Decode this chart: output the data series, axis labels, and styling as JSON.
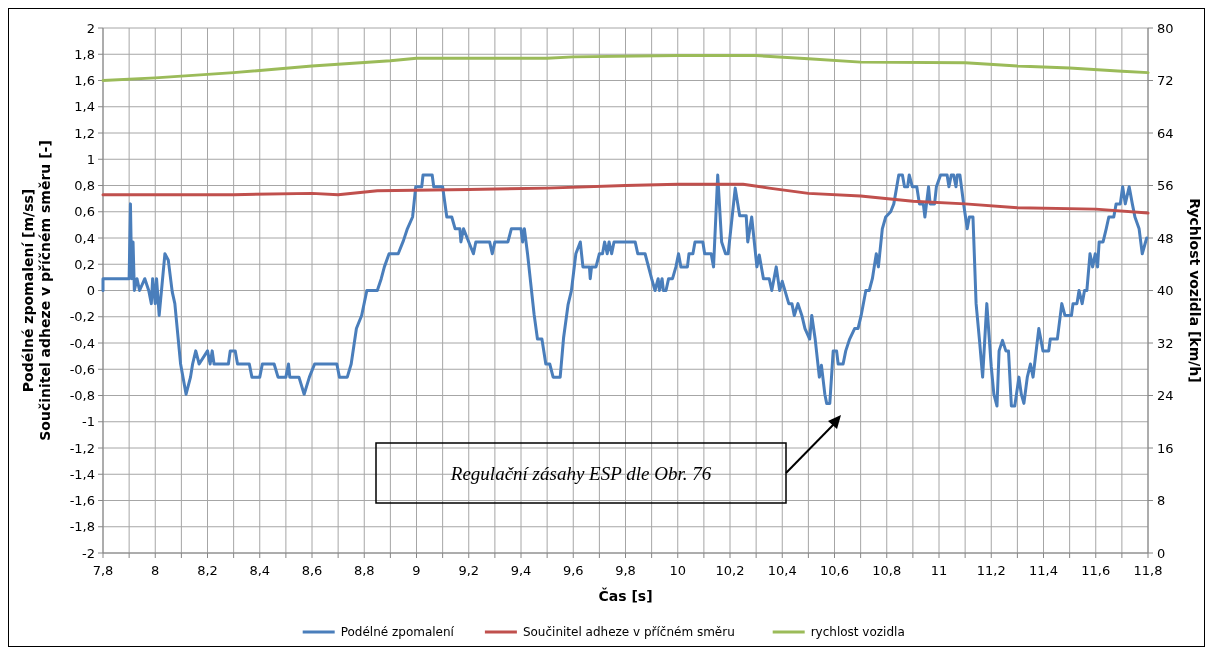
{
  "chart_data": {
    "type": "line",
    "xlabel": "Čas [s]",
    "ylabel": "Podélné zpomalení [m/ss]\nSoučinitel adheze v příčném směru [-]",
    "y2label": "Rychlost vozidla [km/h]",
    "xlim": [
      7.8,
      11.8
    ],
    "xticks": [
      {
        "value": 7.8,
        "label": "7,8"
      },
      {
        "value": 7.9,
        "label": null
      },
      {
        "value": 8,
        "label": "8"
      },
      {
        "value": 8.1,
        "label": null
      },
      {
        "value": 8.2,
        "label": "8,2"
      },
      {
        "value": 8.3,
        "label": null
      },
      {
        "value": 8.4,
        "label": "8,4"
      },
      {
        "value": 8.5,
        "label": null
      },
      {
        "value": 8.6,
        "label": "8,6"
      },
      {
        "value": 8.7,
        "label": null
      },
      {
        "value": 8.8,
        "label": "8,8"
      },
      {
        "value": 8.9,
        "label": null
      },
      {
        "value": 9,
        "label": "9"
      },
      {
        "value": 9.1,
        "label": null
      },
      {
        "value": 9.2,
        "label": "9,2"
      },
      {
        "value": 9.3,
        "label": null
      },
      {
        "value": 9.4,
        "label": "9,4"
      },
      {
        "value": 9.5,
        "label": null
      },
      {
        "value": 9.6,
        "label": "9,6"
      },
      {
        "value": 9.7,
        "label": null
      },
      {
        "value": 9.8,
        "label": "9,8"
      },
      {
        "value": 9.9,
        "label": null
      },
      {
        "value": 10,
        "label": "10"
      },
      {
        "value": 10.1,
        "label": null
      },
      {
        "value": 10.2,
        "label": "10,2"
      },
      {
        "value": 10.3,
        "label": null
      },
      {
        "value": 10.4,
        "label": "10,4"
      },
      {
        "value": 10.5,
        "label": null
      },
      {
        "value": 10.6,
        "label": "10,6"
      },
      {
        "value": 10.7,
        "label": null
      },
      {
        "value": 10.8,
        "label": "10,8"
      },
      {
        "value": 10.9,
        "label": null
      },
      {
        "value": 11,
        "label": "11"
      },
      {
        "value": 11.1,
        "label": null
      },
      {
        "value": 11.2,
        "label": "11,2"
      },
      {
        "value": 11.3,
        "label": null
      },
      {
        "value": 11.4,
        "label": "11,4"
      },
      {
        "value": 11.5,
        "label": null
      },
      {
        "value": 11.6,
        "label": "11,6"
      },
      {
        "value": 11.7,
        "label": null
      },
      {
        "value": 11.8,
        "label": "11,8"
      }
    ],
    "ylim": [
      -2,
      2
    ],
    "yticks": [
      {
        "value": -2,
        "label": "-2"
      },
      {
        "value": -1.8,
        "label": "-1,8"
      },
      {
        "value": -1.6,
        "label": "-1,6"
      },
      {
        "value": -1.4,
        "label": "-1,4"
      },
      {
        "value": -1.2,
        "label": "-1,2"
      },
      {
        "value": -1,
        "label": "-1"
      },
      {
        "value": -0.8,
        "label": "-0,8"
      },
      {
        "value": -0.6,
        "label": "-0,6"
      },
      {
        "value": -0.4,
        "label": "-0,4"
      },
      {
        "value": -0.2,
        "label": "-0,2"
      },
      {
        "value": 0,
        "label": "0"
      },
      {
        "value": 0.2,
        "label": "0,2"
      },
      {
        "value": 0.4,
        "label": "0,4"
      },
      {
        "value": 0.6,
        "label": "0,6"
      },
      {
        "value": 0.8,
        "label": "0,8"
      },
      {
        "value": 1,
        "label": "1"
      },
      {
        "value": 1.2,
        "label": "1,2"
      },
      {
        "value": 1.4,
        "label": "1,4"
      },
      {
        "value": 1.6,
        "label": "1,6"
      },
      {
        "value": 1.8,
        "label": "1,8"
      },
      {
        "value": 2,
        "label": "2"
      }
    ],
    "y2lim": [
      0,
      80
    ],
    "y2ticks": [
      0,
      8,
      16,
      24,
      32,
      40,
      48,
      56,
      64,
      72,
      80
    ],
    "grid": true,
    "legend": "bottom",
    "annotations": [
      "Regulační zásahy ESP dle Obr. 76"
    ],
    "series": [
      {
        "name": "Podélné zpomalení",
        "color": "#4a7ebb",
        "x": [
          7.8,
          7.8,
          7.9,
          7.905,
          7.91,
          7.915,
          7.92,
          7.93,
          7.94,
          7.96,
          7.975,
          7.985,
          7.99,
          8.0,
          8.005,
          8.015,
          8.037,
          8.05,
          8.065,
          8.075,
          8.097,
          8.118,
          8.135,
          8.143,
          8.155,
          8.168,
          8.2,
          8.21,
          8.218,
          8.225,
          8.28,
          8.287,
          8.306,
          8.315,
          8.36,
          8.37,
          8.4,
          8.41,
          8.455,
          8.47,
          8.5,
          8.51,
          8.515,
          8.55,
          8.57,
          8.59,
          8.61,
          8.695,
          8.705,
          8.735,
          8.75,
          8.77,
          8.79,
          8.81,
          8.85,
          8.865,
          8.877,
          8.895,
          8.93,
          8.95,
          8.965,
          8.985,
          8.997,
          9.02,
          9.025,
          9.06,
          9.066,
          9.1,
          9.116,
          9.135,
          9.148,
          9.166,
          9.17,
          9.18,
          9.2,
          9.218,
          9.227,
          9.28,
          9.29,
          9.3,
          9.35,
          9.363,
          9.4,
          9.406,
          9.413,
          9.425,
          9.45,
          9.463,
          9.48,
          9.495,
          9.51,
          9.523,
          9.55,
          9.563,
          9.58,
          9.593,
          9.61,
          9.627,
          9.637,
          9.662,
          9.665,
          9.67,
          9.687,
          9.7,
          9.712,
          9.72,
          9.73,
          9.737,
          9.747,
          9.756,
          9.837,
          9.847,
          9.875,
          9.9,
          9.913,
          9.925,
          9.93,
          9.94,
          9.945,
          9.955,
          9.965,
          9.98,
          9.993,
          10.003,
          10.012,
          10.037,
          10.043,
          10.058,
          10.066,
          10.096,
          10.103,
          10.128,
          10.137,
          10.153,
          10.168,
          10.183,
          10.193,
          10.22,
          10.237,
          10.262,
          10.268,
          10.283,
          10.303,
          10.312,
          10.328,
          10.35,
          10.36,
          10.377,
          10.39,
          10.4,
          10.425,
          10.437,
          10.446,
          10.46,
          10.475,
          10.487,
          10.505,
          10.513,
          10.526,
          10.542,
          10.55,
          10.563,
          10.57,
          10.582,
          10.595,
          10.608,
          10.614,
          10.633,
          10.643,
          10.658,
          10.677,
          10.69,
          10.702,
          10.72,
          10.733,
          10.745,
          10.752,
          10.76,
          10.768,
          10.783,
          10.796,
          10.815,
          10.827,
          10.846,
          10.86,
          10.868,
          10.88,
          10.886,
          10.898,
          10.915,
          10.925,
          10.94,
          10.946,
          10.96,
          10.966,
          10.983,
          10.99,
          11.006,
          11.031,
          11.038,
          11.047,
          11.056,
          11.065,
          11.07,
          11.08,
          11.095,
          11.108,
          11.116,
          11.13,
          11.142,
          11.155,
          11.167,
          11.183,
          11.2,
          11.21,
          11.222,
          11.23,
          11.243,
          11.256,
          11.266,
          11.277,
          11.29,
          11.306,
          11.315,
          11.325,
          11.338,
          11.35,
          11.36,
          11.382,
          11.398,
          11.42,
          11.426,
          11.453,
          11.47,
          11.482,
          11.507,
          11.513,
          11.528,
          11.536,
          11.548,
          11.557,
          11.566,
          11.578,
          11.588,
          11.598,
          11.607,
          11.613,
          11.628,
          11.64,
          11.65,
          11.669,
          11.678,
          11.694,
          11.703,
          11.713,
          11.728,
          11.74,
          11.75,
          11.766,
          11.778,
          11.795
        ],
        "values": [
          0,
          0.09,
          0.09,
          0.66,
          0.09,
          0.37,
          0,
          0.09,
          0,
          0.09,
          0,
          -0.1,
          0.09,
          -0.1,
          0.09,
          -0.19,
          0.28,
          0.23,
          -0.01,
          -0.1,
          -0.56,
          -0.79,
          -0.66,
          -0.56,
          -0.46,
          -0.56,
          -0.46,
          -0.56,
          -0.46,
          -0.56,
          -0.56,
          -0.46,
          -0.46,
          -0.56,
          -0.56,
          -0.66,
          -0.66,
          -0.56,
          -0.56,
          -0.66,
          -0.66,
          -0.56,
          -0.66,
          -0.66,
          -0.79,
          -0.66,
          -0.56,
          -0.56,
          -0.66,
          -0.66,
          -0.56,
          -0.29,
          -0.19,
          0,
          0,
          0.09,
          0.18,
          0.28,
          0.28,
          0.38,
          0.47,
          0.56,
          0.79,
          0.79,
          0.88,
          0.88,
          0.79,
          0.79,
          0.56,
          0.56,
          0.47,
          0.47,
          0.37,
          0.47,
          0.37,
          0.28,
          0.37,
          0.37,
          0.28,
          0.37,
          0.37,
          0.47,
          0.47,
          0.37,
          0.47,
          0.28,
          -0.18,
          -0.37,
          -0.37,
          -0.56,
          -0.56,
          -0.66,
          -0.66,
          -0.36,
          -0.11,
          0,
          0.28,
          0.37,
          0.18,
          0.18,
          0.09,
          0.18,
          0.18,
          0.28,
          0.28,
          0.37,
          0.28,
          0.37,
          0.28,
          0.37,
          0.37,
          0.28,
          0.28,
          0.09,
          0,
          0.09,
          0,
          0.09,
          0,
          0,
          0.09,
          0.09,
          0.18,
          0.28,
          0.18,
          0.18,
          0.28,
          0.28,
          0.37,
          0.37,
          0.28,
          0.28,
          0.18,
          0.88,
          0.37,
          0.28,
          0.28,
          0.78,
          0.57,
          0.57,
          0.37,
          0.56,
          0.18,
          0.27,
          0.09,
          0.09,
          0,
          0.18,
          0,
          0.07,
          -0.1,
          -0.1,
          -0.19,
          -0.1,
          -0.19,
          -0.29,
          -0.37,
          -0.19,
          -0.37,
          -0.66,
          -0.57,
          -0.79,
          -0.86,
          -0.86,
          -0.46,
          -0.46,
          -0.56,
          -0.56,
          -0.46,
          -0.37,
          -0.29,
          -0.29,
          -0.19,
          0,
          0,
          0.09,
          0.18,
          0.28,
          0.18,
          0.47,
          0.56,
          0.6,
          0.66,
          0.88,
          0.88,
          0.79,
          0.79,
          0.88,
          0.79,
          0.79,
          0.66,
          0.66,
          0.56,
          0.79,
          0.66,
          0.66,
          0.79,
          0.88,
          0.88,
          0.79,
          0.88,
          0.88,
          0.79,
          0.88,
          0.88,
          0.65,
          0.47,
          0.56,
          0.56,
          -0.1,
          -0.38,
          -0.66,
          -0.1,
          -0.58,
          -0.79,
          -0.88,
          -0.46,
          -0.38,
          -0.46,
          -0.46,
          -0.88,
          -0.88,
          -0.66,
          -0.79,
          -0.86,
          -0.66,
          -0.56,
          -0.66,
          -0.29,
          -0.46,
          -0.46,
          -0.37,
          -0.37,
          -0.1,
          -0.19,
          -0.19,
          -0.1,
          -0.1,
          0,
          -0.1,
          0,
          0,
          0.28,
          0.18,
          0.28,
          0.18,
          0.37,
          0.37,
          0.47,
          0.56,
          0.56,
          0.66,
          0.66,
          0.79,
          0.66,
          0.79,
          0.66,
          0.56,
          0.47,
          0.28,
          0.4
        ]
      },
      {
        "name": "Součinitel adheze v příčném směru",
        "color": "#c0504d",
        "x": [
          7.8,
          8.3,
          8.6,
          8.7,
          8.85,
          9.2,
          9.5,
          9.8,
          10.0,
          10.25,
          10.35,
          10.5,
          10.7,
          10.9,
          11.1,
          11.3,
          11.6,
          11.8
        ],
        "values": [
          0.73,
          0.73,
          0.74,
          0.73,
          0.76,
          0.77,
          0.78,
          0.8,
          0.81,
          0.81,
          0.78,
          0.74,
          0.72,
          0.68,
          0.66,
          0.63,
          0.62,
          0.59
        ]
      },
      {
        "name": "rychlost vozidla",
        "color": "#9bbb59",
        "axis": "y2",
        "x": [
          7.8,
          8.0,
          8.3,
          8.6,
          8.9,
          9.0,
          9.5,
          9.6,
          10.0,
          10.3,
          10.5,
          10.7,
          11.1,
          11.3,
          11.5,
          11.7,
          11.8
        ],
        "values": [
          72,
          72.4,
          73.2,
          74.2,
          75,
          75.4,
          75.4,
          75.6,
          75.8,
          75.8,
          75.3,
          74.8,
          74.7,
          74.2,
          73.9,
          73.4,
          73.2
        ]
      }
    ]
  }
}
